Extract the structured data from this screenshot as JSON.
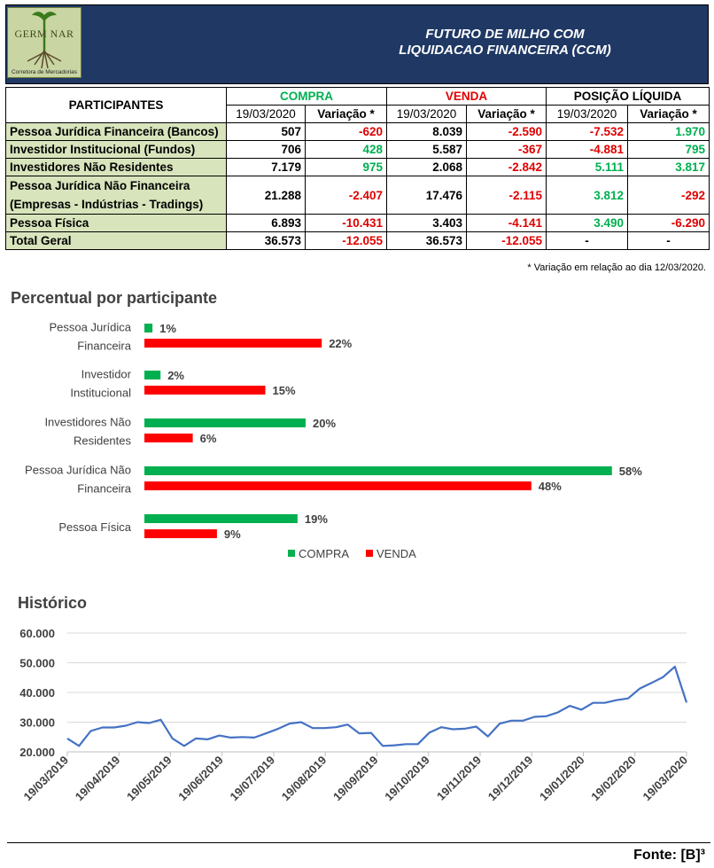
{
  "header": {
    "logo_text": "GERM NAR",
    "logo_subtitle": "Corretora de Mercadorias",
    "title_line1": "FUTURO DE MILHO COM",
    "title_line2": "LIQUIDACAO FINANCEIRA (CCM)"
  },
  "table": {
    "col_participantes": "PARTICIPANTES",
    "group_compra": "COMPRA",
    "group_venda": "VENDA",
    "group_posicao": "POSIÇÃO LÍQUIDA",
    "sub_date": "19/03/2020",
    "sub_var": "Variação *",
    "rows": [
      {
        "name": "Pessoa Jurídica Financeira (Bancos)",
        "compra": "507",
        "compra_var": "-620",
        "venda": "8.039",
        "venda_var": "-2.590",
        "pos": "-7.532",
        "pos_var": "1.970"
      },
      {
        "name": "Investidor Institucional (Fundos)",
        "compra": "706",
        "compra_var": "428",
        "venda": "5.587",
        "venda_var": "-367",
        "pos": "-4.881",
        "pos_var": "795"
      },
      {
        "name": "Investidores Não Residentes",
        "compra": "7.179",
        "compra_var": "975",
        "venda": "2.068",
        "venda_var": "-2.842",
        "pos": "5.111",
        "pos_var": "3.817"
      },
      {
        "name_line1": "Pessoa Jurídica Não Financeira",
        "name_line2": "(Empresas - Indústrias - Tradings)",
        "compra": "21.288",
        "compra_var": "-2.407",
        "venda": "17.476",
        "venda_var": "-2.115",
        "pos": "3.812",
        "pos_var": "-292"
      },
      {
        "name": "Pessoa Física",
        "compra": "6.893",
        "compra_var": "-10.431",
        "venda": "3.403",
        "venda_var": "-4.141",
        "pos": "3.490",
        "pos_var": "-6.290"
      },
      {
        "name": "Total Geral",
        "compra": "36.573",
        "compra_var": "-12.055",
        "venda": "36.573",
        "venda_var": "-12.055",
        "pos": "-",
        "pos_var": "-"
      }
    ],
    "note": "* Variação em relação ao dia 12/03/2020."
  },
  "colors": {
    "compra": "#00b050",
    "venda": "#ff0000",
    "line": "#4472c4",
    "header_bg": "#1f3864",
    "participant_bg": "#d8e4bc"
  },
  "chart_data": [
    {
      "type": "bar",
      "title": "Percentual por participante",
      "categories": [
        "Pessoa Jurídica Financeira",
        "Investidor Institucional",
        "Investidores Não Residentes",
        "Pessoa Jurídica Não Financeira",
        "Pessoa Física"
      ],
      "category_lines": [
        [
          "Pessoa Jurídica",
          "Financeira"
        ],
        [
          "Investidor",
          "Institucional"
        ],
        [
          "Investidores Não",
          "Residentes"
        ],
        [
          "Pessoa Jurídica Não",
          "Financeira"
        ],
        [
          "Pessoa Física"
        ]
      ],
      "series": [
        {
          "name": "COMPRA",
          "values": [
            1,
            2,
            20,
            58,
            19
          ]
        },
        {
          "name": "VENDA",
          "values": [
            22,
            15,
            6,
            48,
            9
          ]
        }
      ],
      "value_suffix": "%",
      "legend": "bottom"
    },
    {
      "type": "line",
      "title": "Histórico",
      "x_ticks": [
        "19/03/2019",
        "19/04/2019",
        "19/05/2019",
        "19/06/2019",
        "19/07/2019",
        "19/08/2019",
        "19/09/2019",
        "19/10/2019",
        "19/11/2019",
        "19/12/2019",
        "19/01/2020",
        "19/02/2020",
        "19/03/2020"
      ],
      "y_ticks": [
        "20.000",
        "30.000",
        "40.000",
        "50.000",
        "60.000"
      ],
      "ylim": [
        20000,
        60000
      ],
      "grid": true,
      "values": [
        24500,
        22000,
        27000,
        28200,
        28200,
        28800,
        30000,
        29700,
        30800,
        24500,
        22000,
        24500,
        24200,
        25500,
        24800,
        25000,
        24800,
        26200,
        27700,
        29500,
        30000,
        28000,
        28000,
        28300,
        29200,
        26200,
        26400,
        22000,
        22200,
        22600,
        22600,
        26500,
        28300,
        27600,
        27800,
        28500,
        25200,
        29500,
        30500,
        30500,
        31800,
        32000,
        33300,
        35500,
        34200,
        36500,
        36500,
        37400,
        38000,
        41300,
        43200,
        45200,
        48700,
        36600
      ]
    }
  ],
  "footer": {
    "source": "Fonte: [B]³"
  }
}
